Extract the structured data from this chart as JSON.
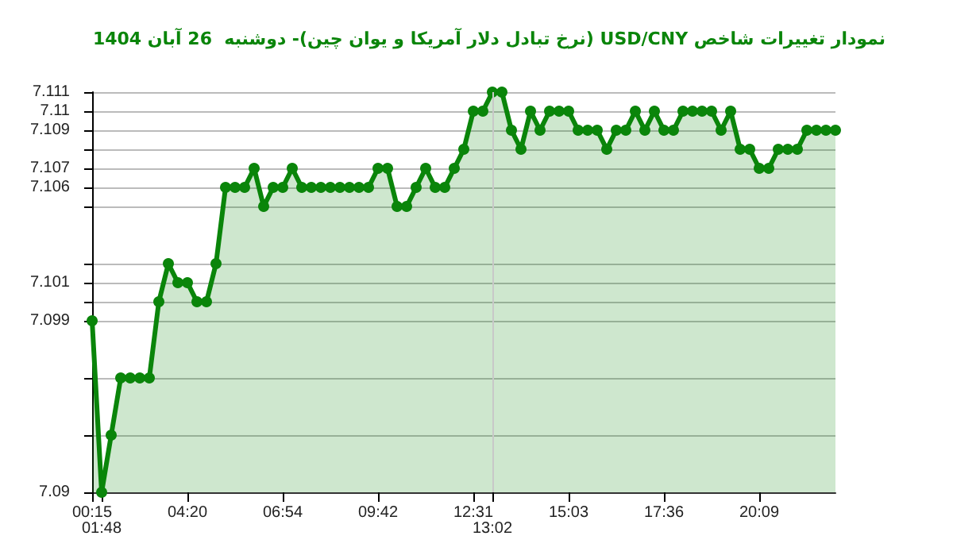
{
  "chart_data": {
    "type": "area",
    "title": "نمودار تغییرات شاخص USD/CNY (نرخ تبادل دلار آمریکا و یوان چین)- دوشنبه  26 آبان 1404",
    "categories": [
      "00:15",
      "01:48",
      null,
      null,
      null,
      null,
      null,
      null,
      null,
      null,
      "04:20",
      null,
      null,
      null,
      null,
      null,
      null,
      null,
      null,
      null,
      "06:54",
      null,
      null,
      null,
      null,
      null,
      null,
      null,
      null,
      null,
      "09:42",
      null,
      null,
      null,
      null,
      null,
      null,
      null,
      null,
      null,
      "12:31",
      null,
      "13:02",
      null,
      null,
      null,
      null,
      null,
      null,
      null,
      "15:03",
      null,
      null,
      null,
      null,
      null,
      null,
      null,
      null,
      null,
      "17:36",
      null,
      null,
      null,
      null,
      null,
      null,
      null,
      null,
      null,
      "20:09",
      null,
      null,
      null,
      null,
      null,
      null,
      null,
      null
    ],
    "values": [
      7.099,
      7.09,
      7.093,
      7.096,
      7.096,
      7.096,
      7.096,
      7.1,
      7.102,
      7.101,
      7.101,
      7.1,
      7.1,
      7.102,
      7.106,
      7.106,
      7.106,
      7.107,
      7.105,
      7.106,
      7.106,
      7.107,
      7.106,
      7.106,
      7.106,
      7.106,
      7.106,
      7.106,
      7.106,
      7.106,
      7.107,
      7.107,
      7.105,
      7.105,
      7.106,
      7.107,
      7.106,
      7.106,
      7.107,
      7.108,
      7.11,
      7.11,
      7.111,
      7.111,
      7.109,
      7.108,
      7.11,
      7.109,
      7.11,
      7.11,
      7.11,
      7.109,
      7.109,
      7.109,
      7.108,
      7.109,
      7.109,
      7.11,
      7.109,
      7.11,
      7.109,
      7.109,
      7.11,
      7.11,
      7.11,
      7.11,
      7.109,
      7.11,
      7.108,
      7.108,
      7.107,
      7.107,
      7.108,
      7.108,
      7.108,
      7.109,
      7.109,
      7.109,
      7.109
    ],
    "color": "#0a850a",
    "ylim": [
      7.09,
      7.111
    ],
    "yticks": [
      7.09,
      {
        "value": 7.093,
        "label": null
      },
      {
        "value": 7.096,
        "label": null
      },
      7.099,
      {
        "value": 7.1,
        "label": null
      },
      7.101,
      {
        "value": 7.102,
        "label": null
      },
      {
        "value": 7.105,
        "label": null
      },
      7.106,
      7.107,
      {
        "value": 7.108,
        "label": null
      },
      7.109,
      7.11,
      7.111
    ],
    "ref_lines": [
      {
        "axis": "x",
        "value": "13:02",
        "color": "#c8c8c8"
      }
    ],
    "grid": "y",
    "marker": "circle"
  }
}
